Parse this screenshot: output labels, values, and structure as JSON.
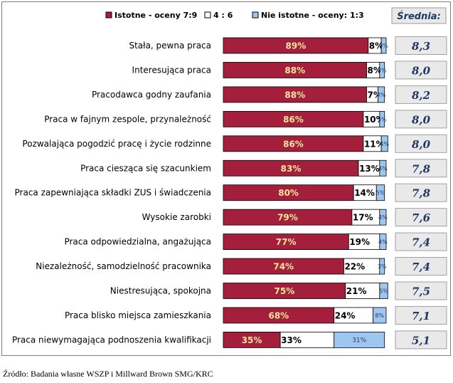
{
  "chart_data": {
    "type": "bar",
    "stacked": true,
    "orientation": "horizontal",
    "xlim": [
      0,
      100
    ],
    "legend_position": "top",
    "average_header": "Średnia:",
    "colors": {
      "Istotne - oceny 7:9": "#a31f3c",
      "4 : 6": "#ffffff",
      "Nie istotne - oceny: 1:3": "#9ec6ee",
      "avg_box": "#e9e9e9",
      "avg_text": "#1f3864"
    },
    "categories": [
      "Stała, pewna praca",
      "Interesująca praca",
      "Pracodawca godny zaufania",
      "Praca w fajnym zespole, przynależność",
      "Pozwalająca pogodzić pracę i życie rodzinne",
      "Praca ciesząca się szacunkiem",
      "Praca zapewniająca składki ZUS i świadczenia",
      "Wysokie zarobki",
      "Praca odpowiedzialna, angażująca",
      "Niezależność, samodzielność pracownika",
      "Niestresująca, spokojna",
      "Praca blisko miejsca zamieszkania",
      "Praca niewymagająca podnoszenia kwalifikacji"
    ],
    "series": [
      {
        "name": "Istotne - oceny 7:9",
        "values": [
          89,
          88,
          88,
          86,
          86,
          83,
          80,
          79,
          77,
          74,
          75,
          68,
          35
        ]
      },
      {
        "name": "4 : 6",
        "values": [
          8,
          8,
          7,
          10,
          11,
          13,
          14,
          17,
          19,
          22,
          21,
          24,
          33
        ]
      },
      {
        "name": "Nie istotne - oceny: 1:3",
        "values": [
          3,
          3,
          4,
          3,
          4,
          4,
          5,
          4,
          4,
          3,
          5,
          8,
          31
        ]
      }
    ],
    "averages": [
      "8,3",
      "8,0",
      "8,2",
      "8,0",
      "8,0",
      "7,8",
      "7,8",
      "7,6",
      "7,4",
      "7,4",
      "7,5",
      "7,1",
      "5,1"
    ]
  },
  "source": "Źródło: Badania własne WSZP i Millward Brown SMG/KRC"
}
